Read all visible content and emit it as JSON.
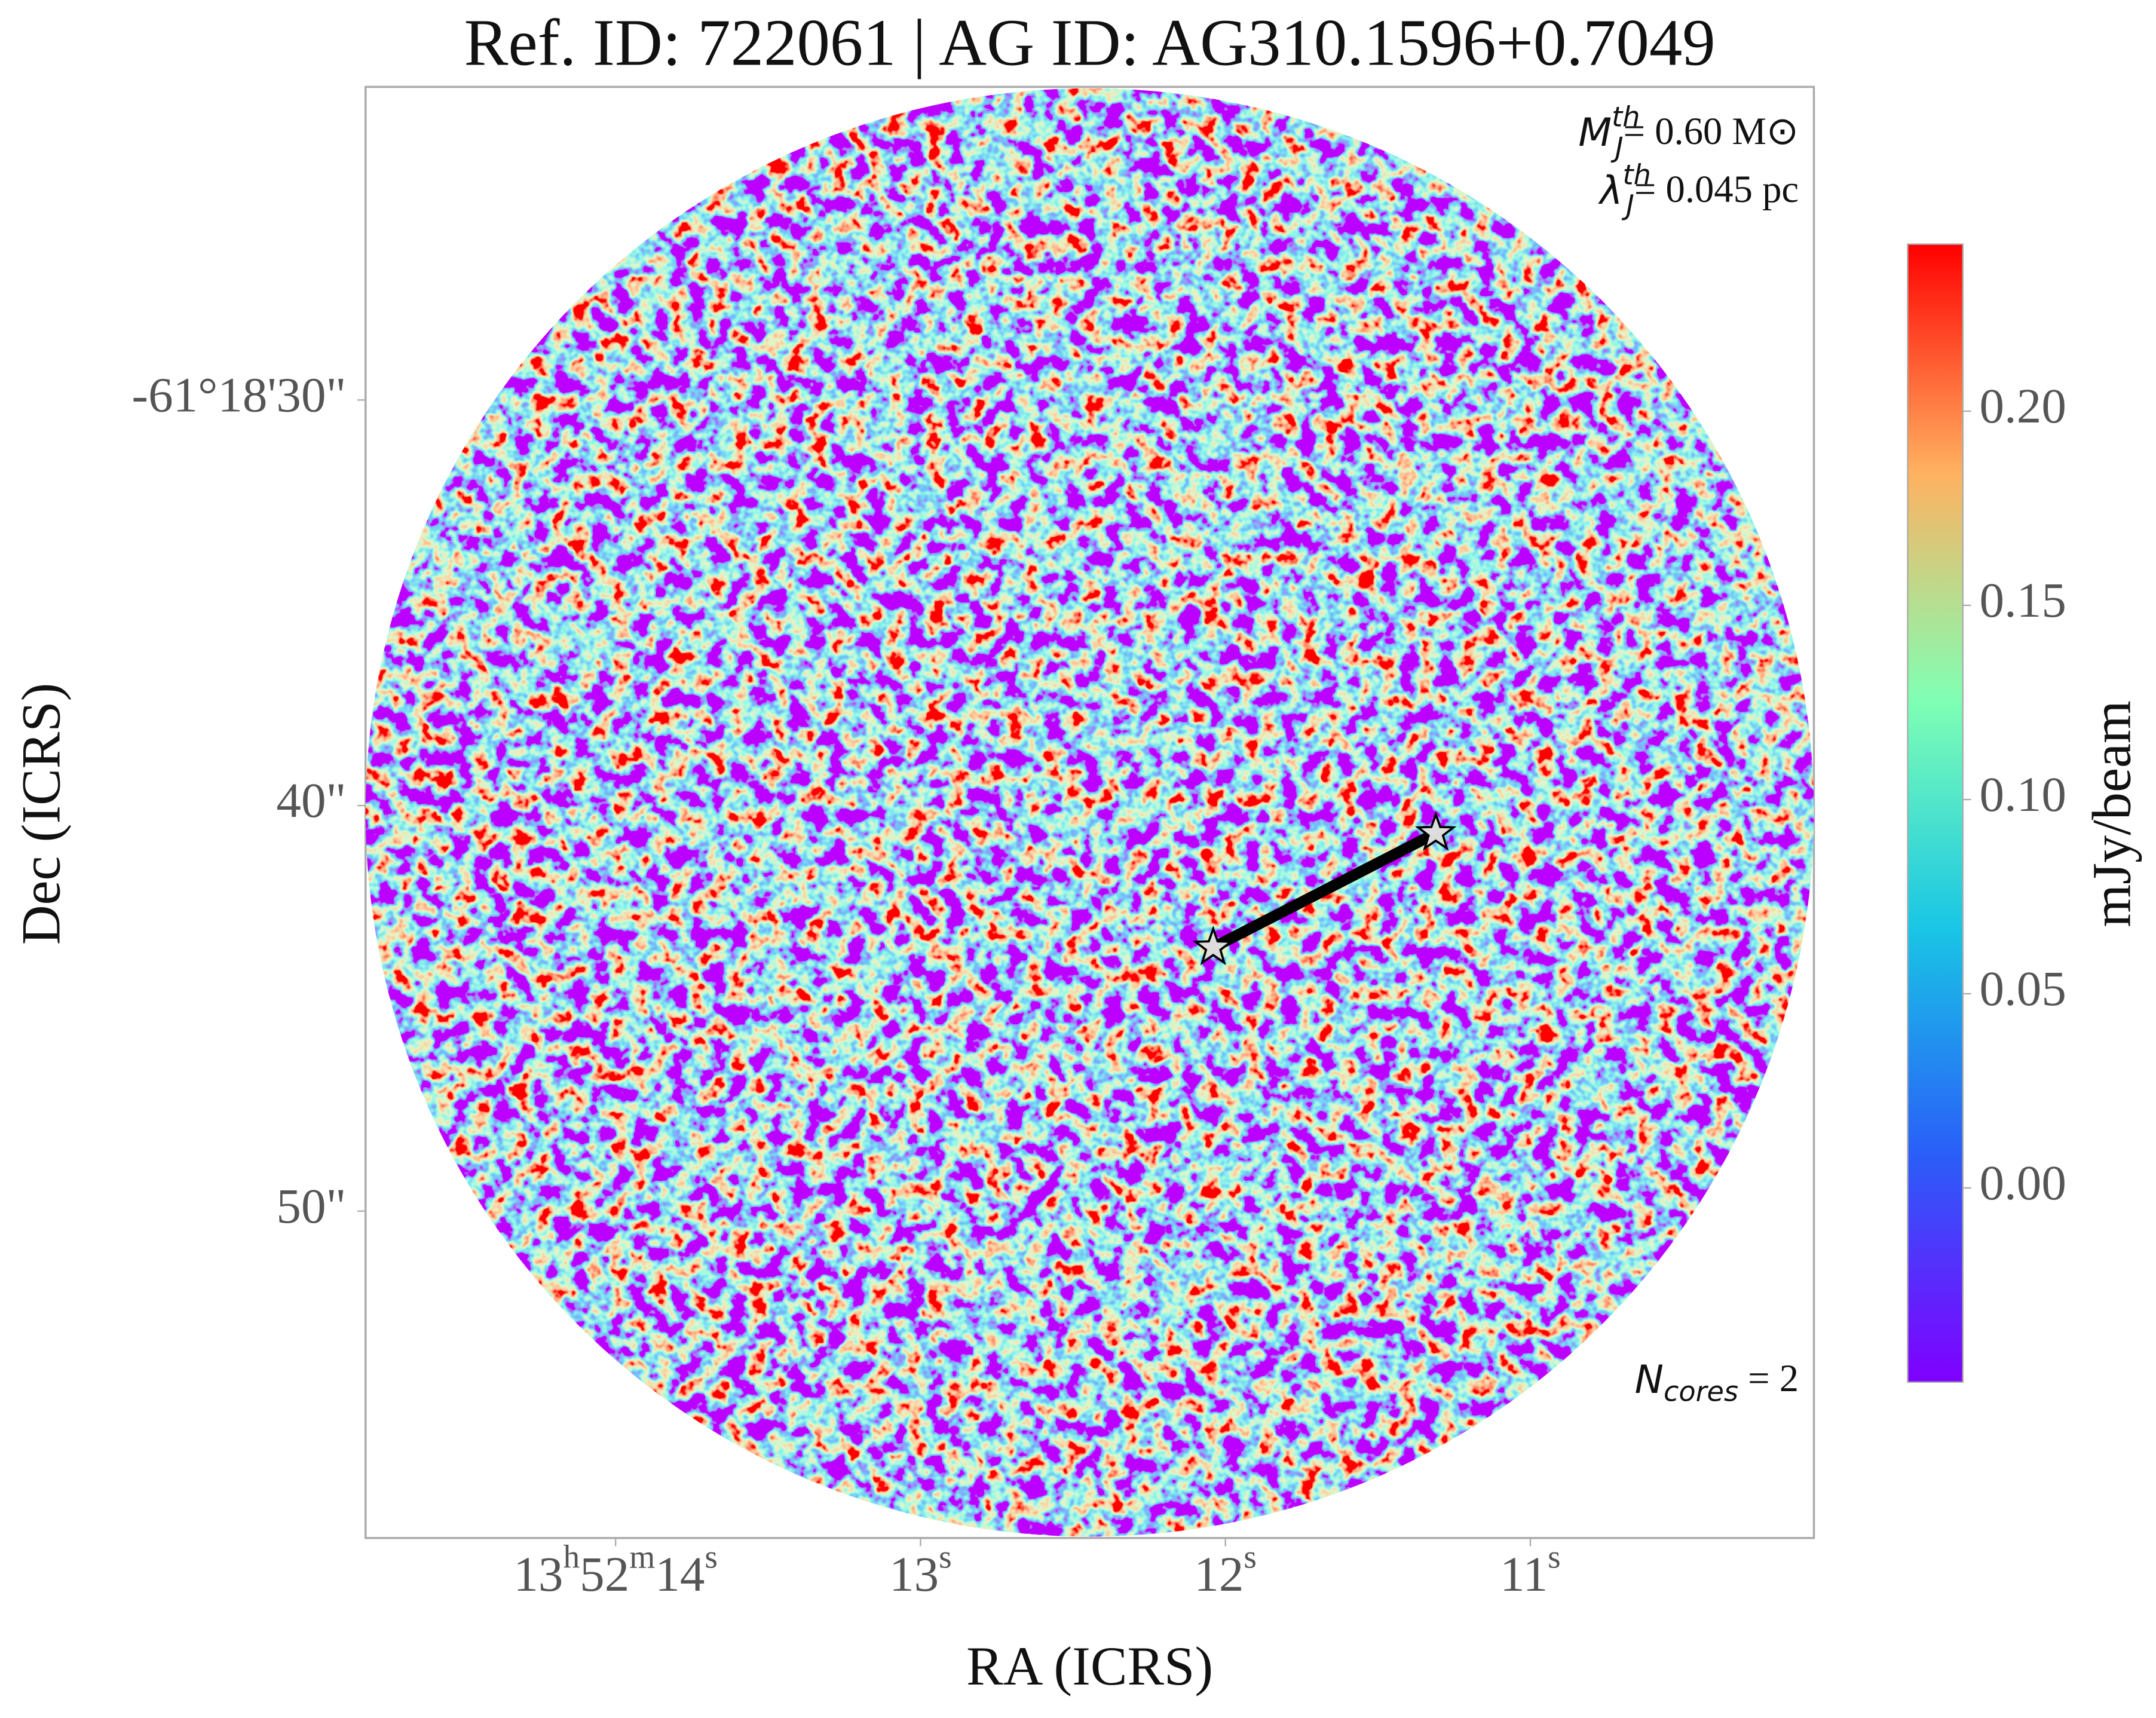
{
  "chart_data": {
    "type": "image",
    "title": "Ref. ID: 722061 | AG ID: AG310.1596+0.7049",
    "x_label": "RA (ICRS)",
    "y_label": "Dec (ICRS)",
    "colorbar_label": "mJy/beam",
    "xlim": [
      14.82,
      10.07
    ],
    "ylim": [
      58.06,
      22.28
    ],
    "xticks": [
      {
        "value": 14,
        "label": "13h52m14s"
      },
      {
        "value": 13,
        "label": "13s"
      },
      {
        "value": 12,
        "label": "12s"
      },
      {
        "value": 11,
        "label": "11s"
      }
    ],
    "yticks": [
      {
        "value": 30,
        "label": "-61°18'30\""
      },
      {
        "value": 40,
        "label": "40\""
      },
      {
        "value": 50,
        "label": "50\""
      }
    ],
    "clim": [
      -0.05,
      0.243
    ],
    "cticks": [
      {
        "value": 0,
        "label": "0.00"
      },
      0.05,
      {
        "value": 0.1,
        "label": "0.10"
      },
      0.15,
      {
        "value": 0.2,
        "label": "0.20"
      }
    ],
    "colormap": "rainbow",
    "cores": {
      "x": [
        12.04,
        11.31
      ],
      "y": [
        43.5,
        40.68
      ]
    },
    "annotations": {
      "mass": {
        "symbol": "M",
        "sub": "J",
        "sup": "th",
        "text": "= 0.60 M⊙"
      },
      "length": {
        "symbol": "λ",
        "sub": "J",
        "sup": "th",
        "text": "= 0.045 pc"
      },
      "ncores": {
        "symbol": "N",
        "sub": "cores",
        "text": " = 2"
      }
    }
  }
}
